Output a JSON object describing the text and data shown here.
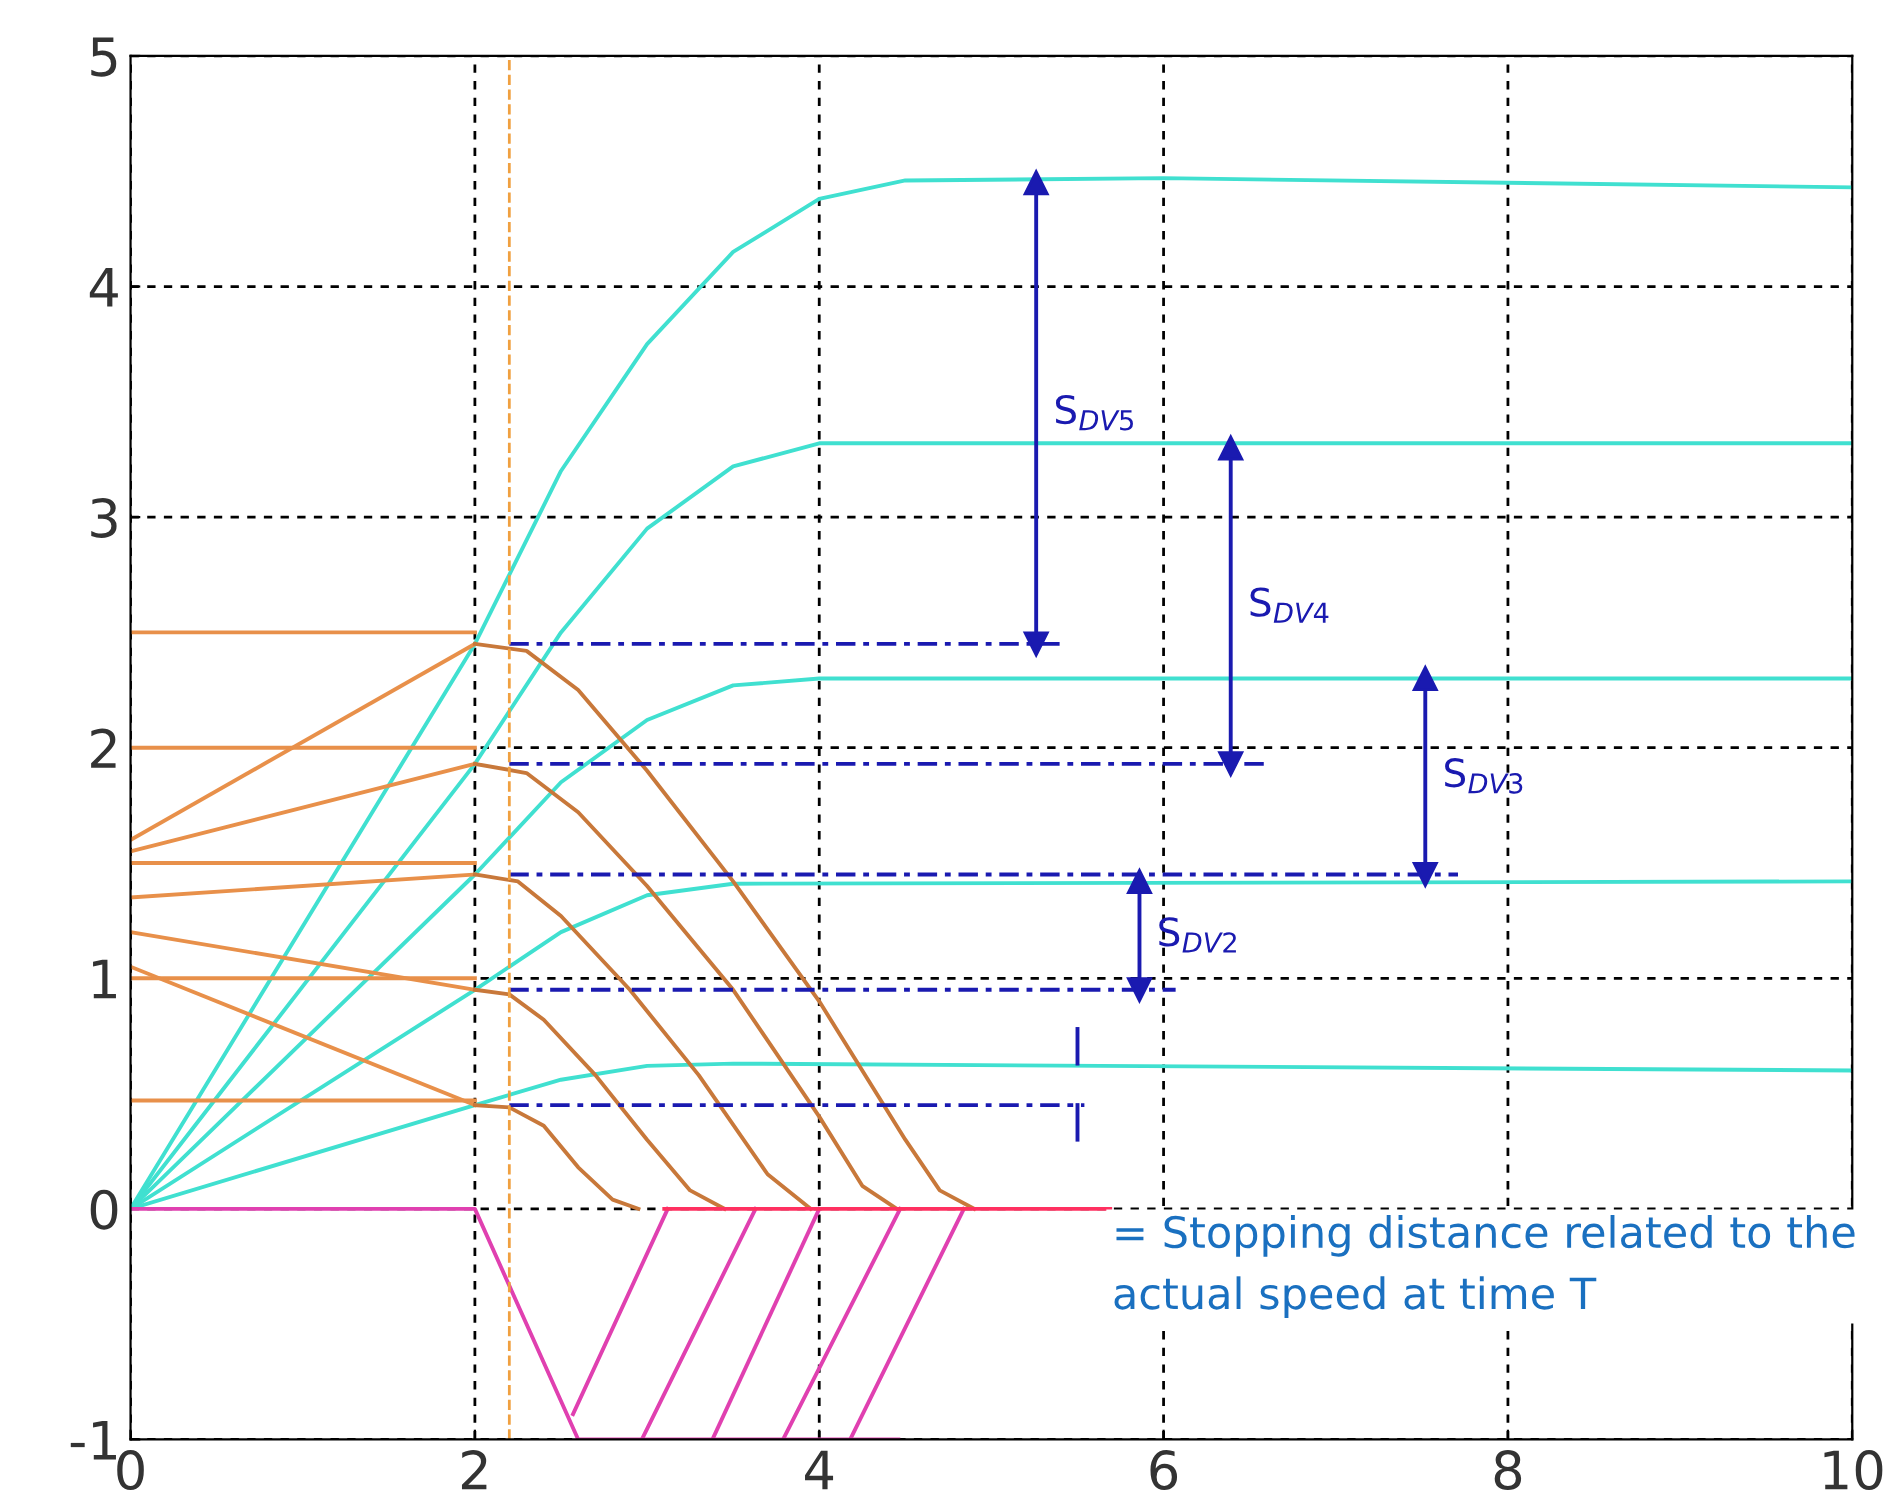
{
  "chart_data": {
    "type": "line",
    "xlim": [
      0,
      10
    ],
    "ylim": [
      -1,
      5
    ],
    "xticks": [
      0,
      2,
      4,
      6,
      8,
      10
    ],
    "yticks": [
      -1,
      0,
      1,
      2,
      3,
      4,
      5
    ],
    "grid": true,
    "line_style": "solid",
    "marker": "none",
    "series": [
      {
        "color": "#40e0d0",
        "x": [
          0,
          2,
          2.5,
          3,
          3.5,
          10
        ],
        "values": [
          0,
          0.45,
          0.56,
          0.62,
          0.63,
          0.6
        ]
      },
      {
        "color": "#40e0d0",
        "x": [
          0,
          2,
          2.5,
          3,
          3.5,
          10
        ],
        "values": [
          0,
          0.95,
          1.2,
          1.36,
          1.41,
          1.42
        ]
      },
      {
        "color": "#40e0d0",
        "x": [
          0,
          2,
          2.5,
          3,
          3.5,
          4,
          10
        ],
        "values": [
          0,
          1.45,
          1.85,
          2.12,
          2.27,
          2.3,
          2.3
        ]
      },
      {
        "color": "#40e0d0",
        "x": [
          0,
          2,
          2.5,
          3,
          3.5,
          4,
          10
        ],
        "values": [
          0,
          1.93,
          2.5,
          2.95,
          3.22,
          3.32,
          3.32
        ]
      },
      {
        "color": "#40e0d0",
        "x": [
          0,
          2,
          2.5,
          3,
          3.5,
          4,
          4.5,
          6,
          10
        ],
        "values": [
          0,
          2.45,
          3.2,
          3.75,
          4.15,
          4.38,
          4.46,
          4.47,
          4.43
        ]
      },
      {
        "color": "#e8904a",
        "x": [
          0,
          2
        ],
        "values": [
          2.5,
          2.5
        ]
      },
      {
        "color": "#e8904a",
        "x": [
          0,
          2
        ],
        "values": [
          2.0,
          2.0
        ]
      },
      {
        "color": "#e8904a",
        "x": [
          0,
          2
        ],
        "values": [
          1.5,
          1.5
        ]
      },
      {
        "color": "#e8904a",
        "x": [
          0,
          2
        ],
        "values": [
          1.0,
          1.0
        ]
      },
      {
        "color": "#e8904a",
        "x": [
          0,
          2
        ],
        "values": [
          0.47,
          0.47
        ]
      },
      {
        "color": "#e8904a",
        "x": [
          0,
          2
        ],
        "values": [
          1.6,
          2.45
        ]
      },
      {
        "color": "#e8904a",
        "x": [
          0,
          2
        ],
        "values": [
          1.55,
          1.93
        ]
      },
      {
        "color": "#e8904a",
        "x": [
          0,
          2
        ],
        "values": [
          1.35,
          1.45
        ]
      },
      {
        "color": "#e8904a",
        "x": [
          0,
          2
        ],
        "values": [
          1.2,
          0.95
        ]
      },
      {
        "color": "#e8904a",
        "x": [
          0,
          2
        ],
        "values": [
          1.05,
          0.45
        ]
      },
      {
        "color": "#c8783a",
        "x": [
          2,
          2.2,
          2.4,
          2.6,
          2.8,
          2.95
        ],
        "values": [
          0.45,
          0.44,
          0.36,
          0.18,
          0.04,
          0
        ]
      },
      {
        "color": "#c8783a",
        "x": [
          2,
          2.2,
          2.4,
          2.7,
          3.0,
          3.25,
          3.45
        ],
        "values": [
          0.95,
          0.93,
          0.82,
          0.58,
          0.3,
          0.08,
          0
        ]
      },
      {
        "color": "#c8783a",
        "x": [
          2,
          2.25,
          2.5,
          2.9,
          3.3,
          3.7,
          3.95
        ],
        "values": [
          1.45,
          1.42,
          1.27,
          0.95,
          0.58,
          0.15,
          0
        ]
      },
      {
        "color": "#c8783a",
        "x": [
          2,
          2.3,
          2.6,
          3.0,
          3.5,
          4.0,
          4.25,
          4.45
        ],
        "values": [
          1.93,
          1.89,
          1.72,
          1.4,
          0.95,
          0.4,
          0.1,
          0
        ]
      },
      {
        "color": "#c8783a",
        "x": [
          2,
          2.3,
          2.6,
          3.0,
          3.5,
          4.0,
          4.5,
          4.7,
          4.9
        ],
        "values": [
          2.45,
          2.42,
          2.25,
          1.9,
          1.42,
          0.9,
          0.3,
          0.08,
          0
        ]
      },
      {
        "color": "#e040b0",
        "x": [
          0,
          2,
          2.6,
          4.46
        ],
        "values": [
          0,
          0,
          -1,
          -1
        ]
      },
      {
        "color": "#e040b0",
        "x": [
          2.57,
          3.12
        ],
        "values": [
          -0.89,
          0
        ]
      },
      {
        "color": "#e040b0",
        "x": [
          2.97,
          3.63
        ],
        "values": [
          -1,
          0
        ]
      },
      {
        "color": "#e040b0",
        "x": [
          3.38,
          4.0
        ],
        "values": [
          -1,
          0
        ]
      },
      {
        "color": "#e040b0",
        "x": [
          3.79,
          4.47
        ],
        "values": [
          -1,
          0
        ]
      },
      {
        "color": "#e040b0",
        "x": [
          4.18,
          4.84
        ],
        "values": [
          -1,
          0
        ]
      },
      {
        "color": "#ff3060",
        "x": [
          3.1,
          5.69
        ],
        "values": [
          0,
          0
        ]
      },
      {
        "color": "#1a1ab0",
        "line_style": "dashed",
        "x": [
          2.2,
          5.4
        ],
        "values": [
          2.45,
          2.45
        ]
      },
      {
        "color": "#1a1ab0",
        "line_style": "dashed",
        "x": [
          2.2,
          6.6
        ],
        "values": [
          1.93,
          1.93
        ]
      },
      {
        "color": "#1a1ab0",
        "line_style": "dashed",
        "x": [
          2.2,
          7.71
        ],
        "values": [
          1.45,
          1.45
        ]
      },
      {
        "color": "#1a1ab0",
        "line_style": "dashed",
        "x": [
          2.2,
          6.07
        ],
        "values": [
          0.95,
          0.95
        ]
      },
      {
        "color": "#1a1ab0",
        "line_style": "dashed",
        "x": [
          2.2,
          5.54
        ],
        "values": [
          0.45,
          0.45
        ]
      },
      {
        "name": "S$_{DV5}$",
        "color": "#1a1ab0",
        "marker": "triangle",
        "x": [
          5.26,
          5.26
        ],
        "values": [
          2.45,
          4.45
        ]
      },
      {
        "name": "S$_{DV4}$",
        "color": "#1a1ab0",
        "marker": "triangle",
        "x": [
          6.39,
          6.39
        ],
        "values": [
          1.93,
          3.3
        ]
      },
      {
        "name": "S$_{DV3}$",
        "color": "#1a1ab0",
        "marker": "triangle",
        "x": [
          7.52,
          7.52
        ],
        "values": [
          1.45,
          2.3
        ]
      },
      {
        "name": "S$_{DV2}$",
        "color": "#1a1ab0",
        "marker": "triangle",
        "x": [
          5.86,
          5.86
        ],
        "values": [
          0.95,
          1.42
        ]
      },
      {
        "color": "#1a1ab0",
        "x": [
          5.5,
          5.5
        ],
        "values": [
          0.78,
          0.63
        ]
      },
      {
        "color": "#1a1ab0",
        "x": [
          5.5,
          5.5
        ],
        "values": [
          0.3,
          0.45
        ]
      }
    ],
    "ref_lines": [
      {
        "axis": "x",
        "value": 2.2,
        "label": null,
        "color": "#f0a040",
        "line_style": "dashed"
      }
    ],
    "annotations": [
      "= Stopping distance related to the actual speed at time T"
    ]
  }
}
